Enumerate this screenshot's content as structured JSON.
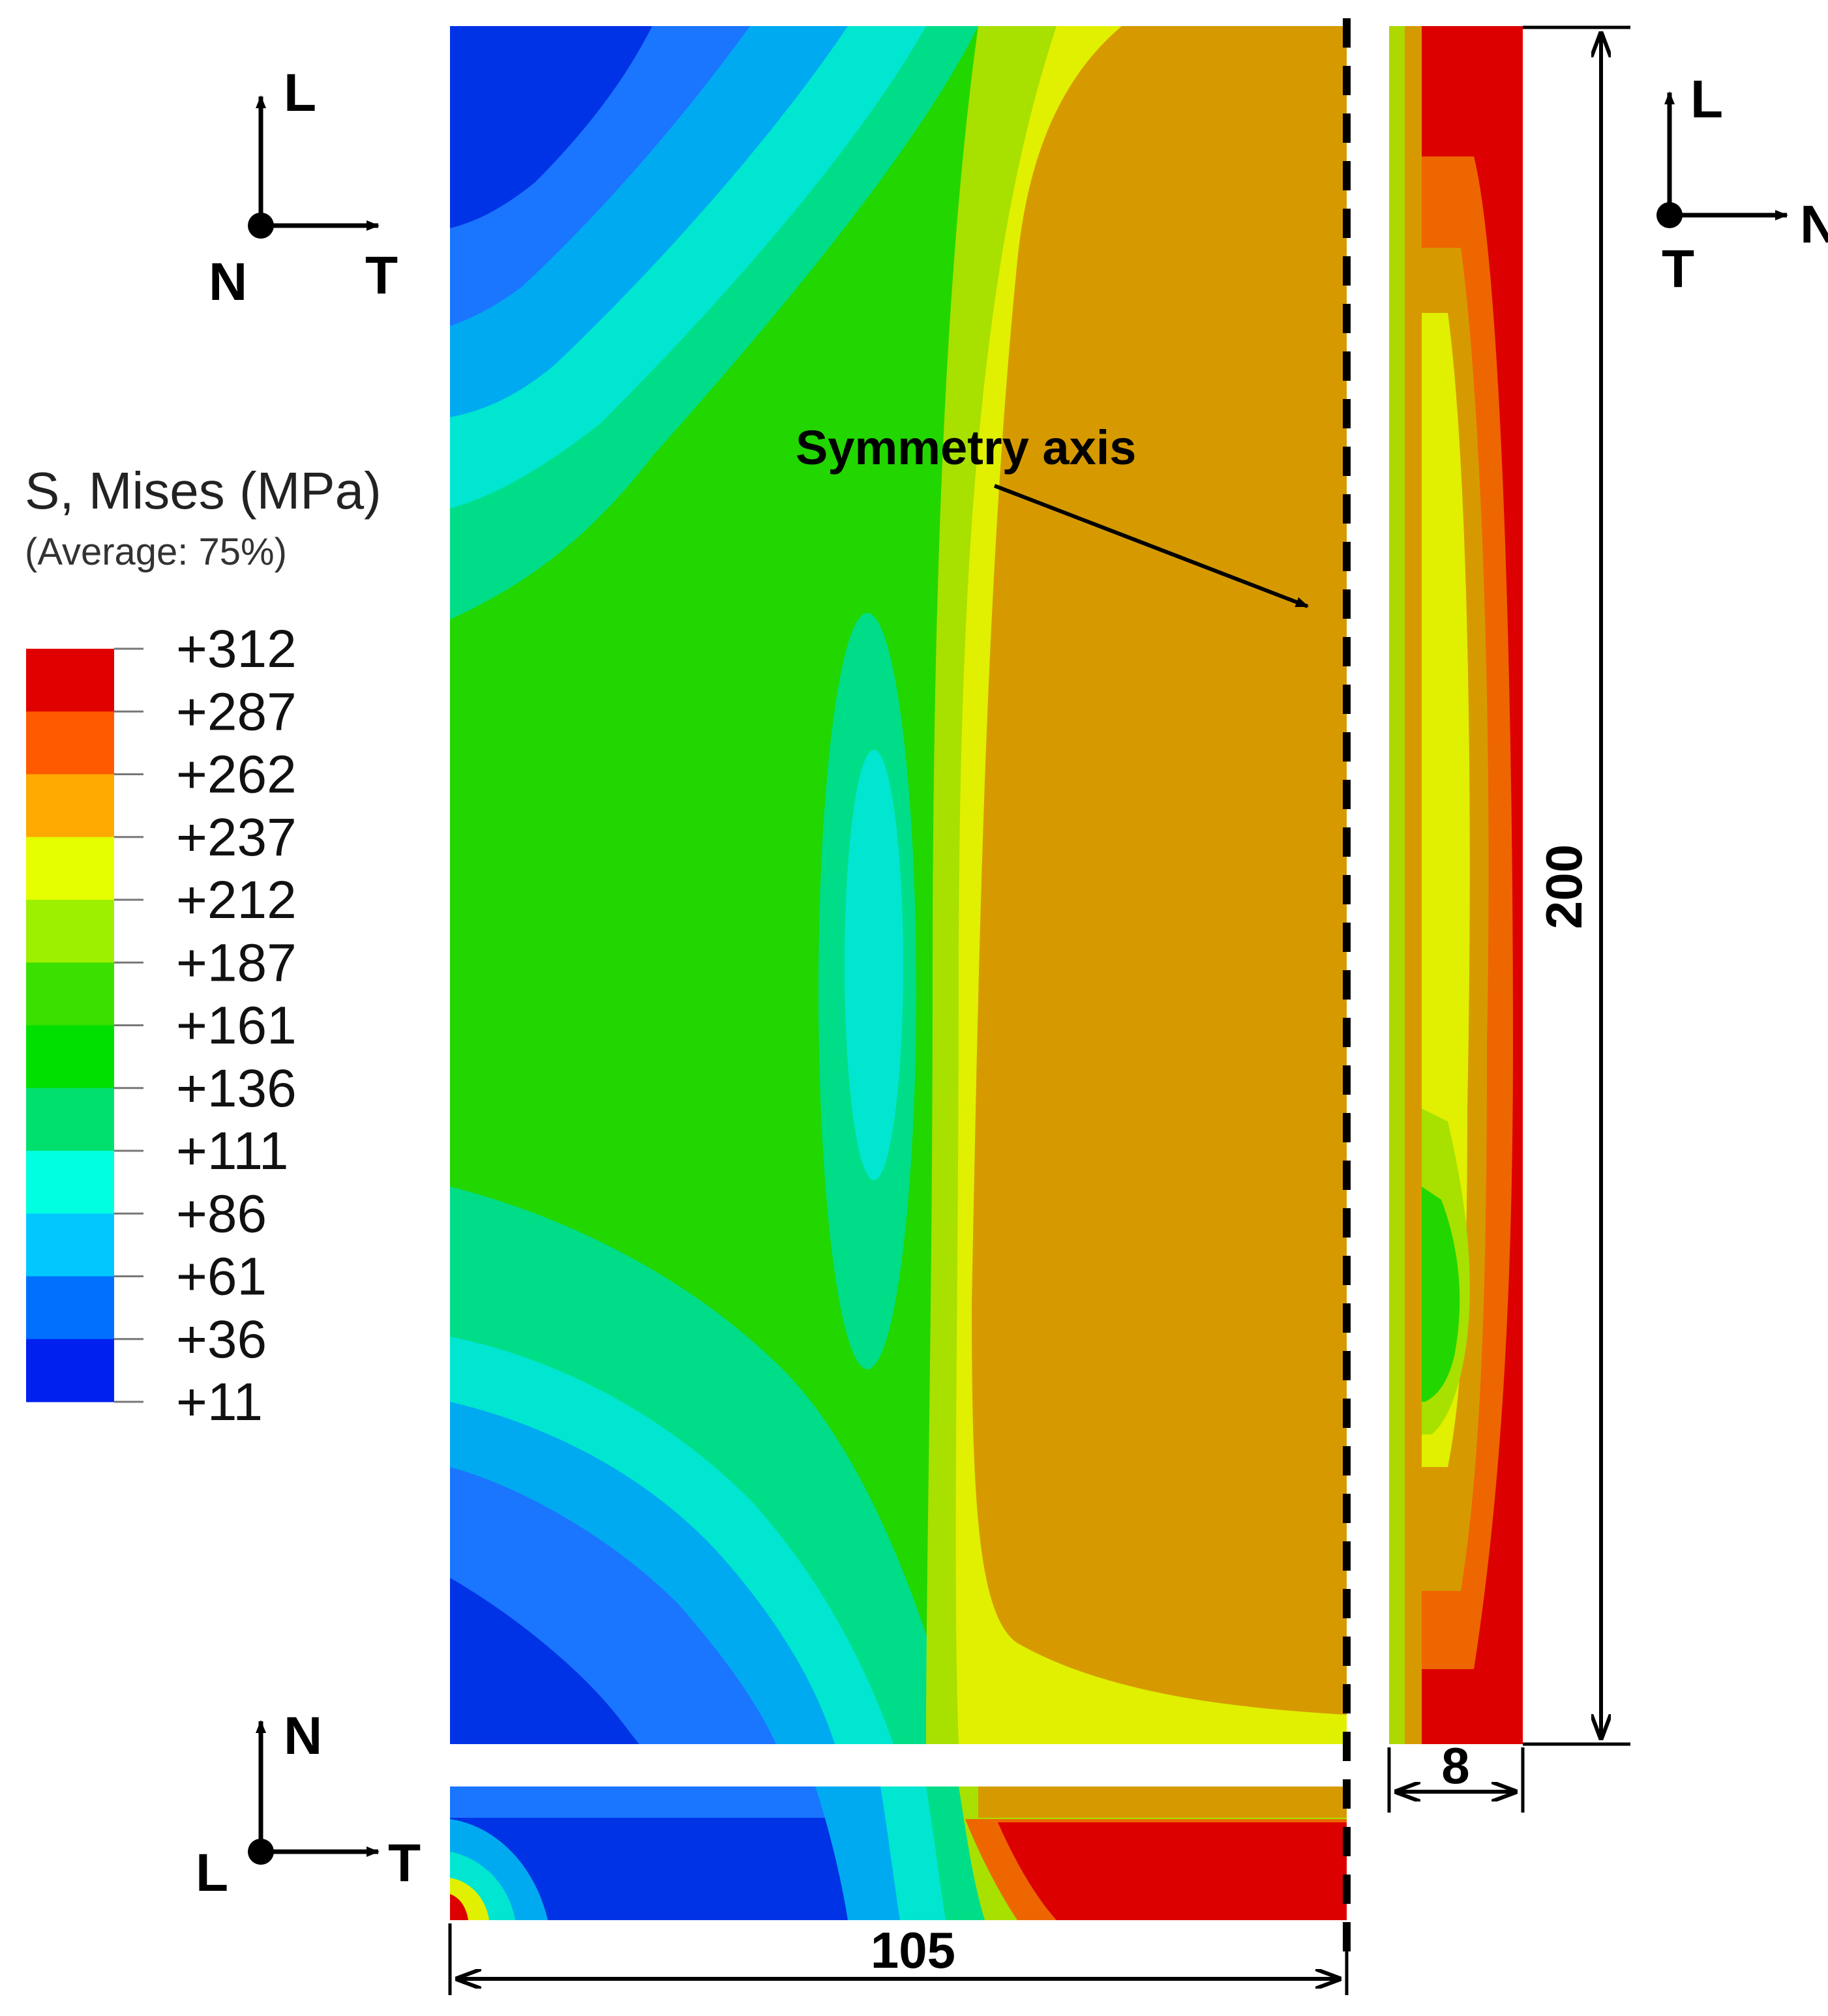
{
  "legend": {
    "title": "S, Mises (MPa)",
    "subtitle": "(Average: 75%)",
    "ticks": [
      "+312",
      "+287",
      "+262",
      "+237",
      "+212",
      "+187",
      "+161",
      "+136",
      "+111",
      "+86",
      "+61",
      "+36",
      "+11"
    ],
    "colors": [
      "#e00000",
      "#ff5a00",
      "#ffaa00",
      "#e6ff00",
      "#9cf000",
      "#3be000",
      "#00e000",
      "#00e06e",
      "#00ffe0",
      "#00c8ff",
      "#0070ff",
      "#0020f0"
    ]
  },
  "triad_front": {
    "up": "L",
    "right": "T",
    "normal": "N"
  },
  "triad_side": {
    "up": "L",
    "right": "N",
    "normal": "T"
  },
  "triad_bottom": {
    "up": "N",
    "right": "T",
    "normal": "L"
  },
  "symmetry_label": "Symmetry axis",
  "dimensions": {
    "width": "105",
    "height": "200",
    "thickness": "8"
  },
  "contour_colors": {
    "blue": "#0033e6",
    "mid_blue": "#1a75ff",
    "light_blue": "#00aaf0",
    "cyan": "#00e6d0",
    "teal": "#00dd88",
    "green": "#22d600",
    "yellow_green": "#a8e000",
    "yellow": "#e0f000",
    "orange": "#d69a00",
    "dark_orange": "#ee6600",
    "red": "#dd0000"
  }
}
